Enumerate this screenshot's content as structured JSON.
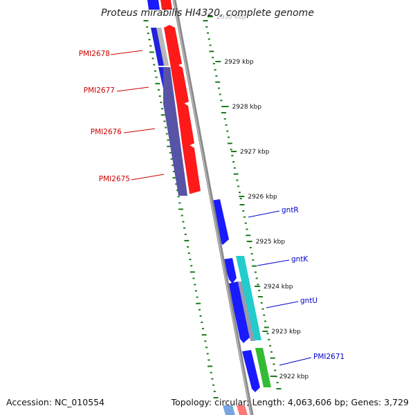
{
  "title": "Proteus mirabilis HI4320, complete genome",
  "footer": {
    "accession": "Accession: NC_010554",
    "summary": "Topology: circular; Length: 4,063,606 bp; Genes: 3,729"
  },
  "colors": {
    "background": "#ffffff",
    "backbone": "#8a8a8a",
    "forward_cds": "#ff1a1a",
    "reverse_cds": "#1a1aff",
    "reverse_cds_alt": "#5a58a8",
    "gray_cds": "#b0b0b0",
    "cyan_cds": "#22cccc",
    "green_cds": "#33bb33",
    "tick": "#1a7a1a",
    "left_label": "#cc0000",
    "right_label": "#0000cc"
  },
  "scale_ticks": [
    {
      "kbp": 2930,
      "label": "2930 kbp"
    },
    {
      "kbp": 2929,
      "label": "2929 kbp"
    },
    {
      "kbp": 2928,
      "label": "2928 kbp"
    },
    {
      "kbp": 2927,
      "label": "2927 kbp"
    },
    {
      "kbp": 2926,
      "label": "2926 kbp"
    },
    {
      "kbp": 2925,
      "label": "2925 kbp"
    },
    {
      "kbp": 2924,
      "label": "2924 kbp"
    },
    {
      "kbp": 2923,
      "label": "2923 kbp"
    },
    {
      "kbp": 2922,
      "label": "2922 kbp"
    }
  ],
  "left_labels": [
    {
      "text": "PMI2678"
    },
    {
      "text": "PMI2677"
    },
    {
      "text": "PMI2676"
    },
    {
      "text": "PMI2675"
    }
  ],
  "right_labels": [
    {
      "text": "gntR"
    },
    {
      "text": "gntK"
    },
    {
      "text": "gntU"
    },
    {
      "text": "PMI2671"
    }
  ]
}
